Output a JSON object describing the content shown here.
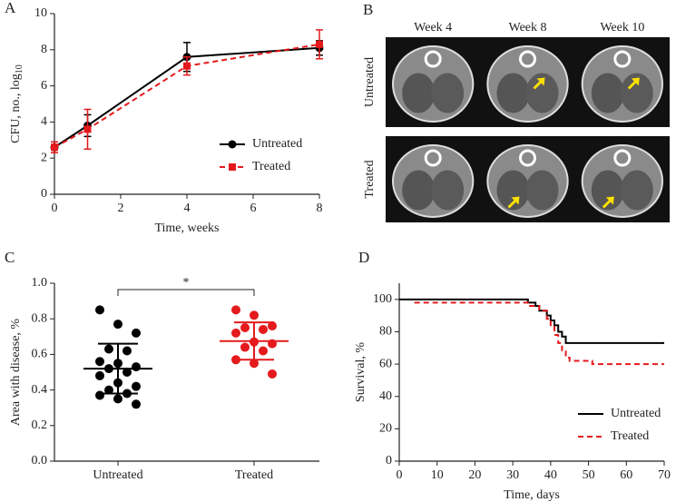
{
  "chart_data": [
    {
      "type": "line",
      "panel": "A",
      "xlabel": "Time, weeks",
      "ylabel": "CFU, no., log",
      "ylabel_sub": "10",
      "x": [
        0,
        1,
        4,
        8
      ],
      "xlim": [
        0,
        8
      ],
      "xticks": [
        0,
        2,
        4,
        6,
        8
      ],
      "ylim": [
        0,
        10
      ],
      "yticks": [
        0,
        2,
        4,
        6,
        8,
        10
      ],
      "legend": "lower right",
      "series": [
        {
          "name": "Untreated",
          "color": "#000000",
          "marker": "circle",
          "dash": false,
          "values": [
            2.6,
            3.8,
            7.6,
            8.1
          ],
          "errors": [
            0.3,
            0.6,
            0.8,
            0.4
          ]
        },
        {
          "name": "Treated",
          "color": "#e41a1c",
          "marker": "square",
          "dash": true,
          "values": [
            2.6,
            3.6,
            7.1,
            8.3
          ],
          "errors": [
            0.3,
            1.1,
            0.5,
            0.8
          ]
        }
      ]
    },
    {
      "type": "image_grid",
      "panel": "B",
      "columns": [
        "Week 4",
        "Week 8",
        "Week 10"
      ],
      "rows": [
        "Untreated",
        "Treated"
      ]
    },
    {
      "type": "dot",
      "panel": "C",
      "ylabel": "Area with disease, %",
      "categories": [
        "Untreated",
        "Treated"
      ],
      "ylim": [
        0,
        1
      ],
      "yticks": [
        {
          "value": 0,
          "label": "0.0"
        },
        0.2,
        0.4,
        0.6,
        0.8,
        {
          "value": 1,
          "label": "1.0"
        }
      ],
      "significance": "*",
      "groups": [
        {
          "color": "#000000",
          "mean": 0.52,
          "sd": 0.14,
          "values": [
            0.85,
            0.77,
            0.72,
            0.63,
            0.62,
            0.56,
            0.55,
            0.53,
            0.52,
            0.5,
            0.48,
            0.44,
            0.42,
            0.4,
            0.38,
            0.37,
            0.35,
            0.32
          ]
        },
        {
          "color": "#e41a1c",
          "mean": 0.675,
          "sd": 0.105,
          "values": [
            0.85,
            0.82,
            0.76,
            0.75,
            0.74,
            0.72,
            0.67,
            0.66,
            0.64,
            0.62,
            0.57,
            0.55,
            0.49
          ]
        }
      ]
    },
    {
      "type": "line",
      "panel": "D",
      "xlabel": "Time, days",
      "ylabel": "Survival, %",
      "xlim": [
        0,
        70
      ],
      "xticks": [
        0,
        10,
        20,
        30,
        40,
        50,
        60,
        70
      ],
      "ylim": [
        0,
        110
      ],
      "yticks": [
        0,
        20,
        40,
        60,
        80,
        100
      ],
      "legend": "lower right",
      "series": [
        {
          "name": "Untreated",
          "color": "#000000",
          "dash": false,
          "x": [
            0,
            34,
            34,
            36,
            36,
            37,
            37,
            39,
            39,
            40,
            40,
            41,
            41,
            42,
            42,
            43,
            43,
            44,
            44,
            70
          ],
          "values": [
            100,
            100,
            98,
            98,
            96,
            96,
            93,
            93,
            90,
            90,
            87,
            87,
            84,
            84,
            80,
            80,
            77,
            77,
            73,
            73
          ]
        },
        {
          "name": "Treated",
          "color": "#e41a1c",
          "dash": true,
          "x": [
            4,
            34,
            34,
            37,
            37,
            39,
            39,
            40,
            40,
            41,
            41,
            42,
            42,
            43,
            43,
            44,
            44,
            45,
            45,
            51,
            51,
            70
          ],
          "values": [
            98,
            98,
            96,
            96,
            93,
            93,
            88,
            88,
            83,
            83,
            78,
            78,
            73,
            73,
            68,
            68,
            64,
            64,
            62,
            62,
            60,
            60
          ]
        }
      ]
    }
  ]
}
